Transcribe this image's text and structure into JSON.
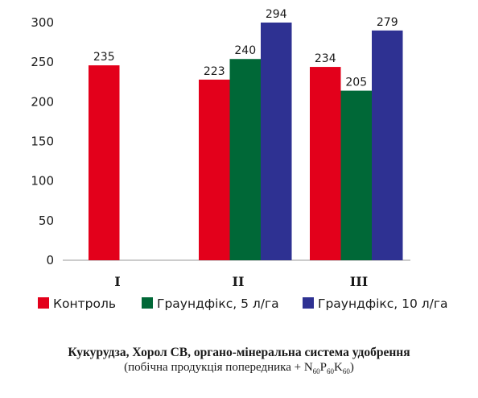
{
  "chart_data": {
    "type": "bar",
    "categories": [
      "I",
      "II",
      "III"
    ],
    "series": [
      {
        "name": "Контроль",
        "color": "#e3001b",
        "values": [
          235,
          223,
          234
        ]
      },
      {
        "name": "Граундфікс, 5 л/га",
        "color": "#006837",
        "values": [
          null,
          240,
          205
        ]
      },
      {
        "name": "Граундфікс, 10 л/га",
        "color": "#2e3192",
        "values": [
          null,
          294,
          279
        ]
      }
    ],
    "bar_heights": [
      [
        246,
        228,
        244
      ],
      [
        null,
        254,
        214
      ],
      [
        null,
        300,
        290
      ]
    ],
    "ylim": [
      0,
      300
    ],
    "yticks": [
      0,
      50,
      100,
      150,
      200,
      250,
      300
    ],
    "grid": false,
    "legend": "bottom"
  },
  "caption": {
    "title": "Кукурудза, Хорол СВ, органо-мінеральна система удобрення",
    "subtitle_prefix": "(побічна продукція попередника + N",
    "sub_n": "60",
    "p": "P",
    "sub_p": "60",
    "k": "K",
    "sub_k": "60",
    "subtitle_suffix": ")"
  }
}
